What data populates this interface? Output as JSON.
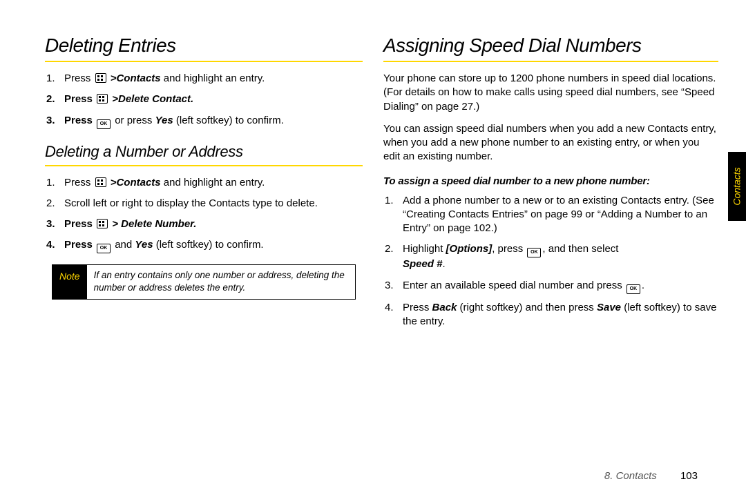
{
  "left": {
    "h1": "Deleting Entries",
    "list1": {
      "i1_a": "Press ",
      "i1_b": "Contacts",
      "i1_c": " and highlight an entry.",
      "i2_a": "Press ",
      "i2_b": "Delete Contact.",
      "i3_a": "Press ",
      "i3_b": " or press ",
      "i3_c": "Yes",
      "i3_d": " (left softkey) to confirm."
    },
    "h2": "Deleting a Number or Address",
    "list2": {
      "i1_a": "Press ",
      "i1_b": "Contacts",
      "i1_c": " and highlight an entry.",
      "i2": "Scroll left or right to display the Contacts type to delete.",
      "i3_a": "Press ",
      "i3_b": "Delete Number.",
      "i4_a": "Press ",
      "i4_b": " and ",
      "i4_c": "Yes",
      "i4_d": " (left softkey) to confirm."
    },
    "note_label": "Note",
    "note_text": "If an entry contains only one number or address, deleting the number or address deletes the entry."
  },
  "right": {
    "h1": "Assigning Speed Dial Numbers",
    "p1": "Your phone can store up to 1200 phone numbers in speed dial locations. (For details on how to make calls using speed dial numbers, see “Speed Dialing” on page 27.)",
    "p2": "You can assign speed dial numbers when you add a new Contacts entry, when you add a new phone number to an existing entry, or when you edit an existing number.",
    "subhead": "To assign a speed dial number to a new phone number:",
    "list": {
      "i1": "Add a phone number to a new or to an existing Contacts entry. (See “Creating Contacts Entries” on page 99 or “Adding a Number to an Entry” on page 102.)",
      "i2_a": "Highlight ",
      "i2_b": "[Options]",
      "i2_c": ", press ",
      "i2_d": ", and then select ",
      "i2_e": "Speed #",
      "i2_f": ".",
      "i3_a": "Enter an available speed dial number and press ",
      "i3_b": ".",
      "i4_a": "Press ",
      "i4_b": "Back",
      "i4_c": " (right softkey) and then press ",
      "i4_d": "Save",
      "i4_e": " (left softkey) to save the entry."
    }
  },
  "footer": {
    "chapter": "8. Contacts",
    "page": "103"
  },
  "tab": "Contacts",
  "gt": ">"
}
